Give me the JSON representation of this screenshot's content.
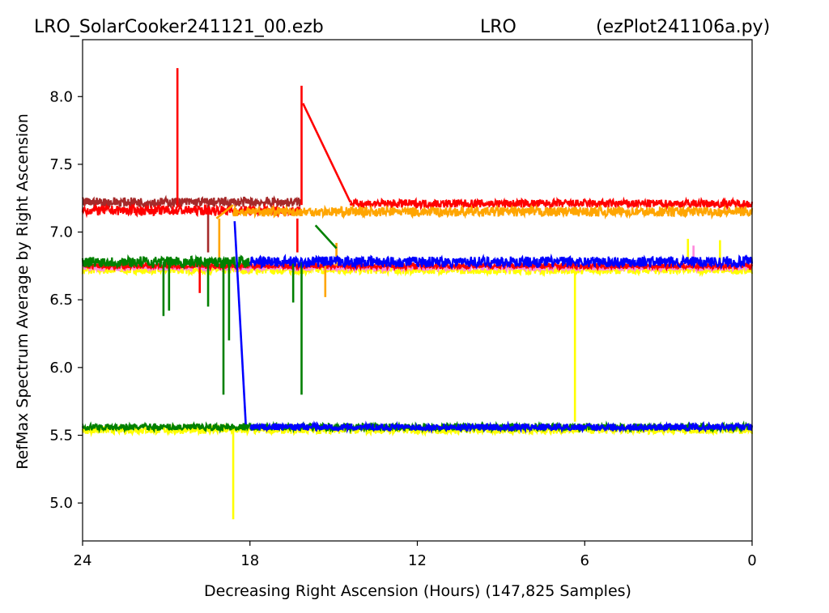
{
  "header": {
    "file_label": "LRO_SolarCooker241121_00.ezb",
    "site_label": "LRO",
    "script_label": "(ezPlot241106a.py)"
  },
  "chart_data": {
    "type": "line",
    "title": "",
    "xlabel": "Decreasing Right Ascension (Hours) (147,825 Samples)",
    "ylabel": "RefMax Spectrum Average by Right Ascension",
    "xlim": [
      24,
      0
    ],
    "ylim": [
      4.72,
      8.42
    ],
    "x_ticks": [
      24,
      18,
      12,
      6,
      0
    ],
    "y_ticks": [
      5.0,
      5.5,
      6.0,
      6.5,
      7.0,
      7.5,
      8.0
    ],
    "y_tick_labels": [
      "5.0",
      "5.5",
      "6.0",
      "6.5",
      "7.0",
      "7.5",
      "8.0"
    ],
    "x_tick_labels": [
      "24",
      "18",
      "12",
      "6",
      "0"
    ],
    "legend": "none",
    "grid": false,
    "series": [
      {
        "color": "#ffff00",
        "bands": [
          {
            "x": [
              24,
              0
            ],
            "y": 6.72,
            "noise": 0.03
          },
          {
            "x": [
              24,
              0
            ],
            "y": 5.54,
            "noise": 0.03
          }
        ],
        "spikes": [
          {
            "x": 18.6,
            "y0": 5.55,
            "y1": 4.88
          },
          {
            "x": 6.35,
            "y0": 6.72,
            "y1": 5.6
          },
          {
            "x": 2.3,
            "y0": 6.75,
            "y1": 6.95
          },
          {
            "x": 1.15,
            "y0": 6.75,
            "y1": 6.94
          }
        ]
      },
      {
        "color": "#ff88dd",
        "bands": [
          {
            "x": [
              24,
              0
            ],
            "y": 6.74,
            "noise": 0.025
          }
        ],
        "spikes": [
          {
            "x": 2.1,
            "y0": 6.75,
            "y1": 6.9
          }
        ]
      },
      {
        "color": "#a52a2a",
        "bands": [
          {
            "x": [
              24,
              16.2
            ],
            "y": 7.22,
            "noise": 0.035
          }
        ],
        "spikes": [
          {
            "x": 19.5,
            "y0": 7.2,
            "y1": 6.85
          }
        ]
      },
      {
        "color": "#ff0000",
        "bands": [
          {
            "x": [
              24,
              16.2
            ],
            "y": 7.16,
            "noise": 0.035
          },
          {
            "x": 14.4,
            "y": 7.21,
            "noise": 0.03,
            "x2": 0
          },
          {
            "x": [
              24,
              0
            ],
            "y": 6.75,
            "noise": 0.02
          }
        ],
        "spikes": [
          {
            "x": 20.6,
            "y0": 7.18,
            "y1": 8.21
          },
          {
            "x": 16.15,
            "y0": 7.2,
            "y1": 8.08
          },
          {
            "x": 19.8,
            "y0": 6.75,
            "y1": 6.55
          },
          {
            "x": 16.3,
            "y0": 7.1,
            "y1": 6.85
          }
        ],
        "links": [
          [
            [
              16.1,
              7.95
            ],
            [
              14.4,
              7.22
            ]
          ]
        ]
      },
      {
        "color": "#ffa500",
        "bands": [
          {
            "x": [
              18.6,
              0
            ],
            "y": 7.15,
            "noise": 0.035
          }
        ],
        "spikes": [
          {
            "x": 19.1,
            "y0": 7.1,
            "y1": 6.8
          },
          {
            "x": 15.3,
            "y0": 6.75,
            "y1": 6.52
          },
          {
            "x": 14.9,
            "y0": 6.75,
            "y1": 6.92
          }
        ],
        "links": [
          [
            [
              19.2,
              7.1
            ],
            [
              18.6,
              7.2
            ]
          ]
        ]
      },
      {
        "color": "#008000",
        "bands": [
          {
            "x": [
              24,
              18.0
            ],
            "y": 6.78,
            "noise": 0.04
          },
          {
            "x": [
              24,
              0
            ],
            "y": 5.56,
            "noise": 0.025
          }
        ],
        "spikes": [
          {
            "x": 21.1,
            "y0": 6.78,
            "y1": 6.38
          },
          {
            "x": 20.9,
            "y0": 6.78,
            "y1": 6.42
          },
          {
            "x": 19.5,
            "y0": 6.78,
            "y1": 6.45
          },
          {
            "x": 18.95,
            "y0": 6.78,
            "y1": 5.8
          },
          {
            "x": 18.75,
            "y0": 6.78,
            "y1": 6.2
          },
          {
            "x": 16.45,
            "y0": 6.78,
            "y1": 6.48
          },
          {
            "x": 16.15,
            "y0": 6.78,
            "y1": 5.8
          }
        ],
        "links": [
          [
            [
              15.65,
              7.05
            ],
            [
              14.9,
              6.88
            ]
          ]
        ]
      },
      {
        "color": "#0000ff",
        "bands": [
          {
            "x": [
              18.0,
              0
            ],
            "y": 6.78,
            "noise": 0.04
          },
          {
            "x": [
              18.0,
              0
            ],
            "y": 5.56,
            "noise": 0.025
          }
        ],
        "spikes": [],
        "links": [
          [
            [
              18.55,
              7.08
            ],
            [
              18.15,
              5.58
            ]
          ]
        ]
      }
    ]
  }
}
